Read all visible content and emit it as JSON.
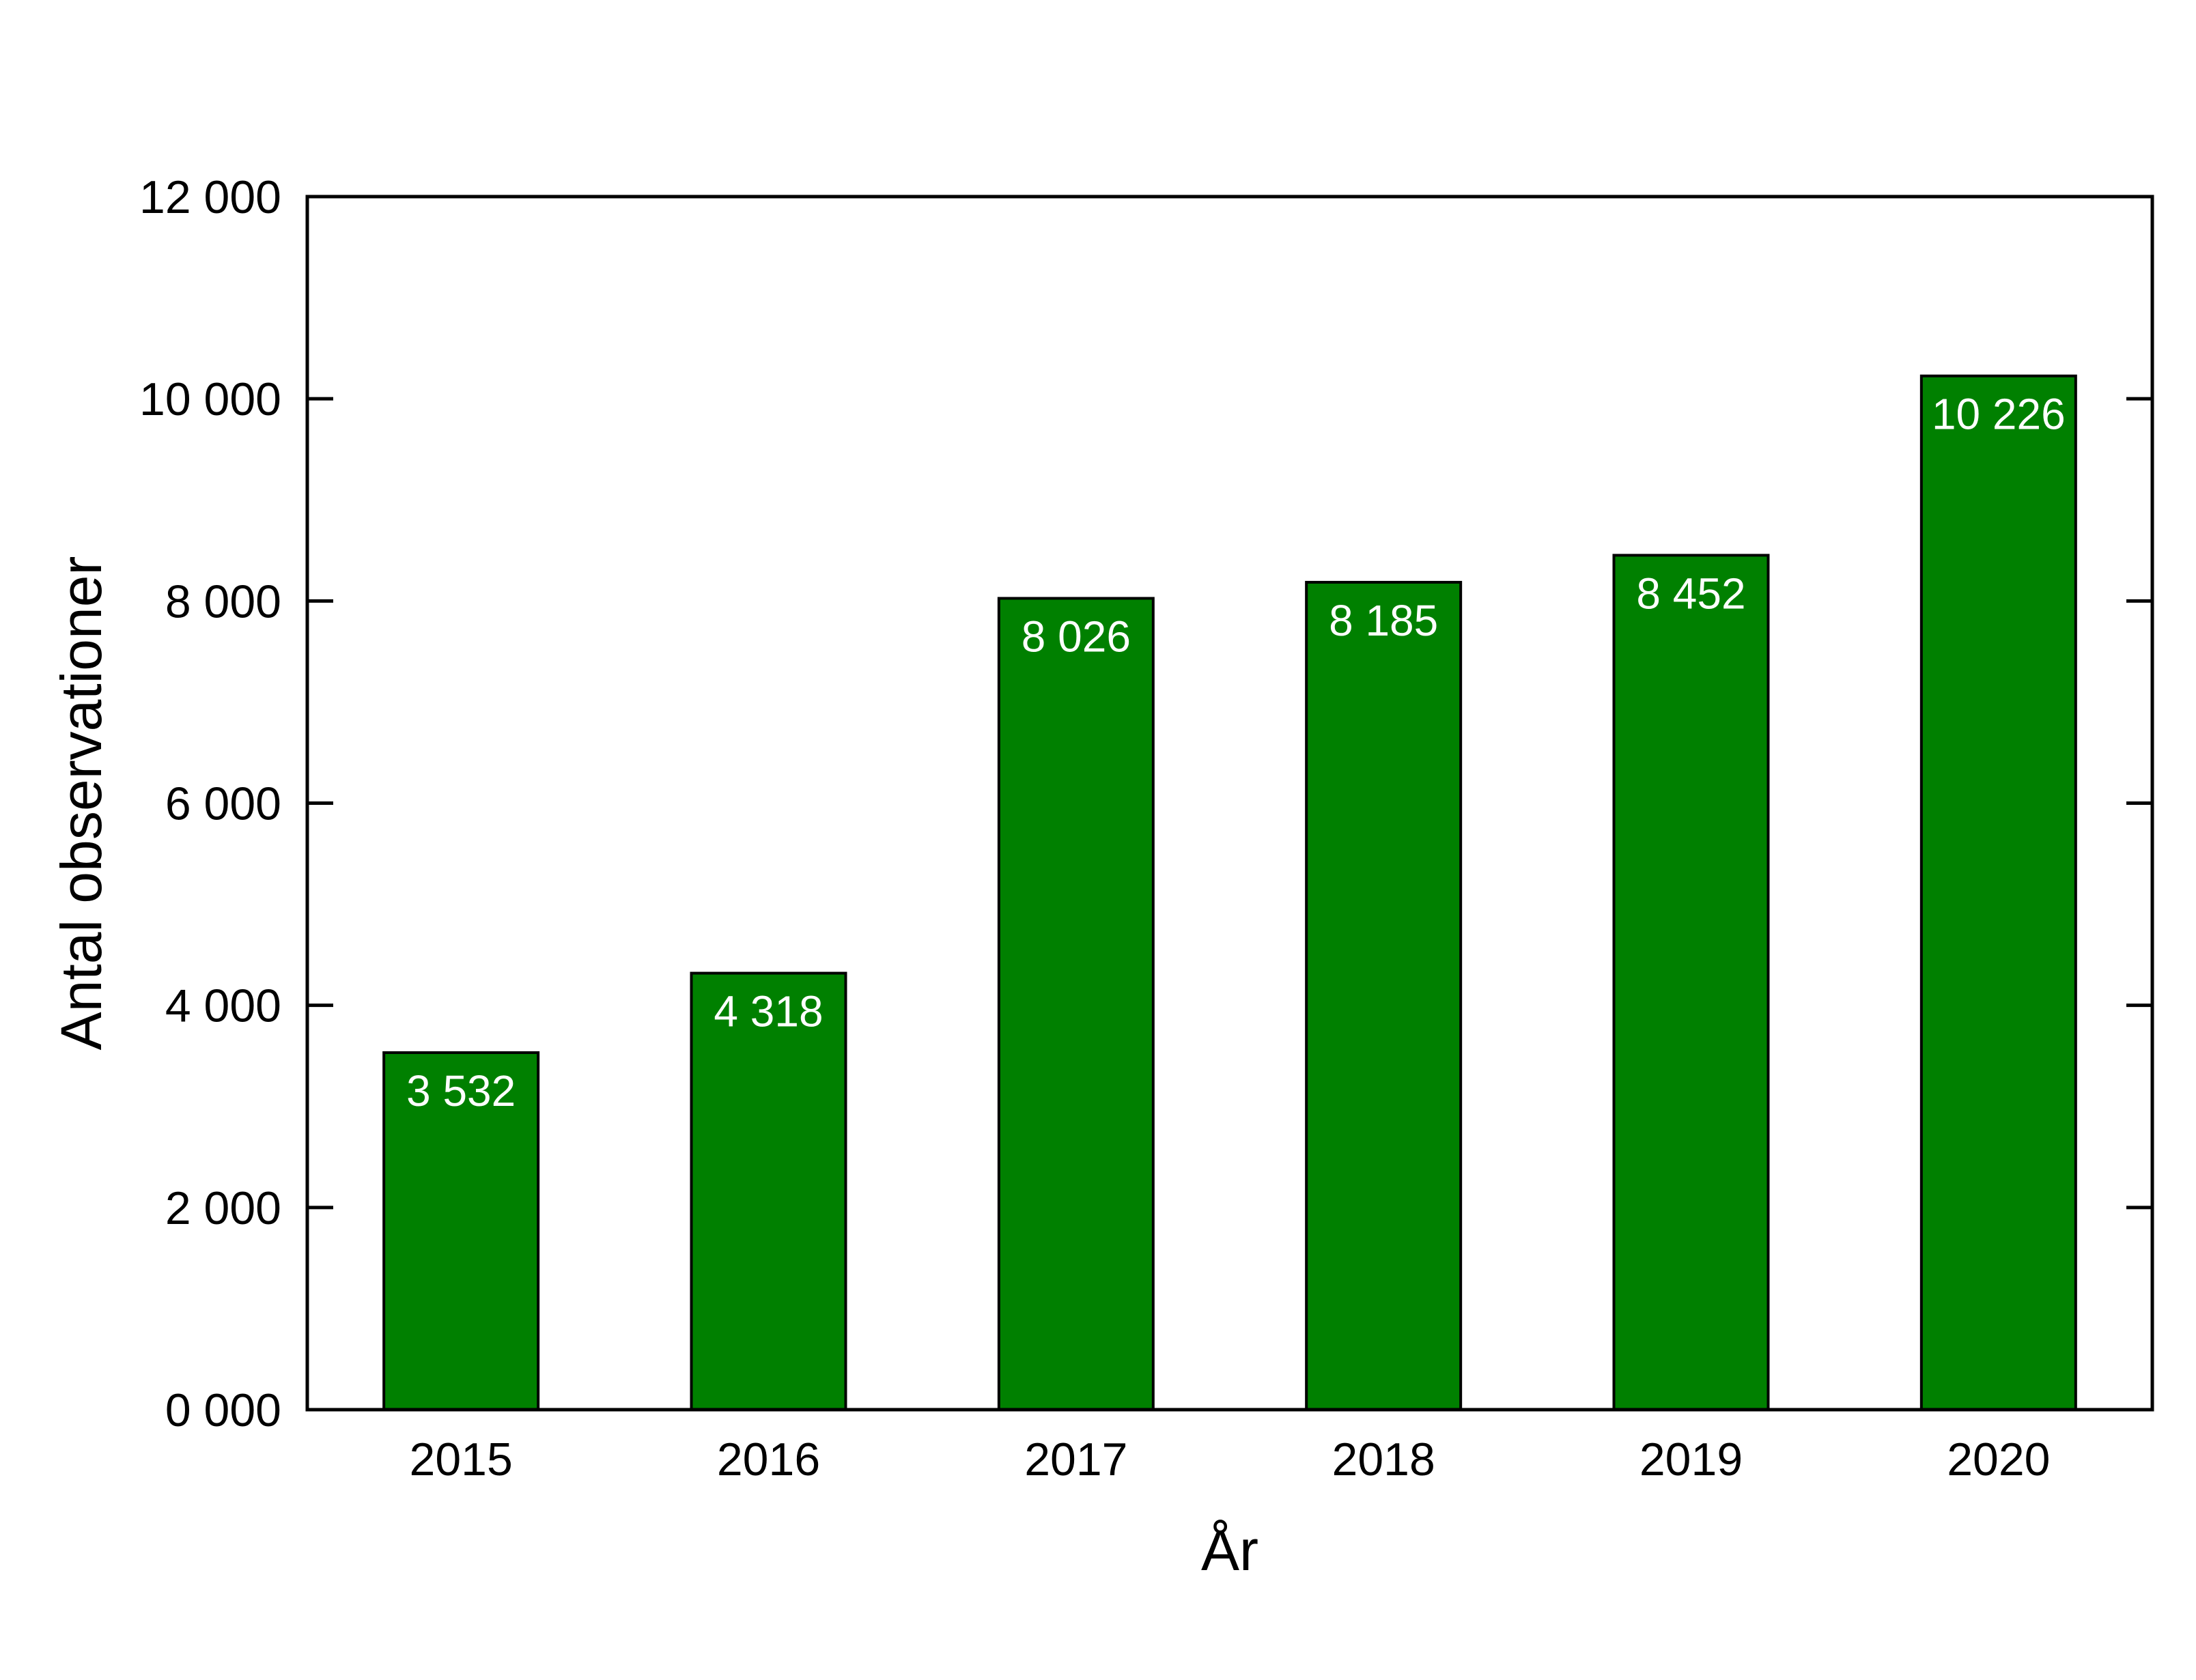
{
  "chart_data": {
    "type": "bar",
    "title": "",
    "xlabel": "År",
    "ylabel": "Antal observationer",
    "categories": [
      "2015",
      "2016",
      "2017",
      "2018",
      "2019",
      "2020"
    ],
    "values": [
      3532,
      4318,
      8026,
      8185,
      8452,
      10226
    ],
    "value_labels": [
      "3 532",
      "4 318",
      "8 026",
      "8 185",
      "8 452",
      "10 226"
    ],
    "ylim": [
      0,
      12000
    ],
    "yticks": [
      0,
      2000,
      4000,
      6000,
      8000,
      10000,
      12000
    ],
    "ytick_labels": [
      "0 000",
      "2 000",
      "4 000",
      "6 000",
      "8 000",
      "10 000",
      "12 000"
    ],
    "grid": false,
    "legend": "none",
    "bar_color": "#008000"
  }
}
